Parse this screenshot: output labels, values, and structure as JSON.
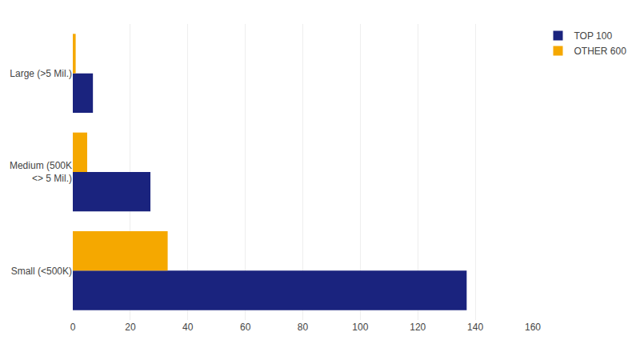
{
  "chart_data": {
    "type": "bar",
    "orientation": "horizontal",
    "categories": [
      "Small (<500K)",
      "Medium (500K\n<> 5 Mil.)",
      "Large (>5 Mil.)"
    ],
    "series": [
      {
        "name": "TOP 100",
        "color": "#1a237e",
        "values": [
          137,
          27,
          7
        ]
      },
      {
        "name": "OTHER 600",
        "color": "#f5a800",
        "values": [
          33,
          5,
          1
        ]
      }
    ],
    "xlim": [
      0,
      160
    ],
    "xticks": [
      0,
      20,
      40,
      60,
      80,
      100,
      120,
      140,
      160
    ],
    "grid": true,
    "legend": "upper right"
  }
}
